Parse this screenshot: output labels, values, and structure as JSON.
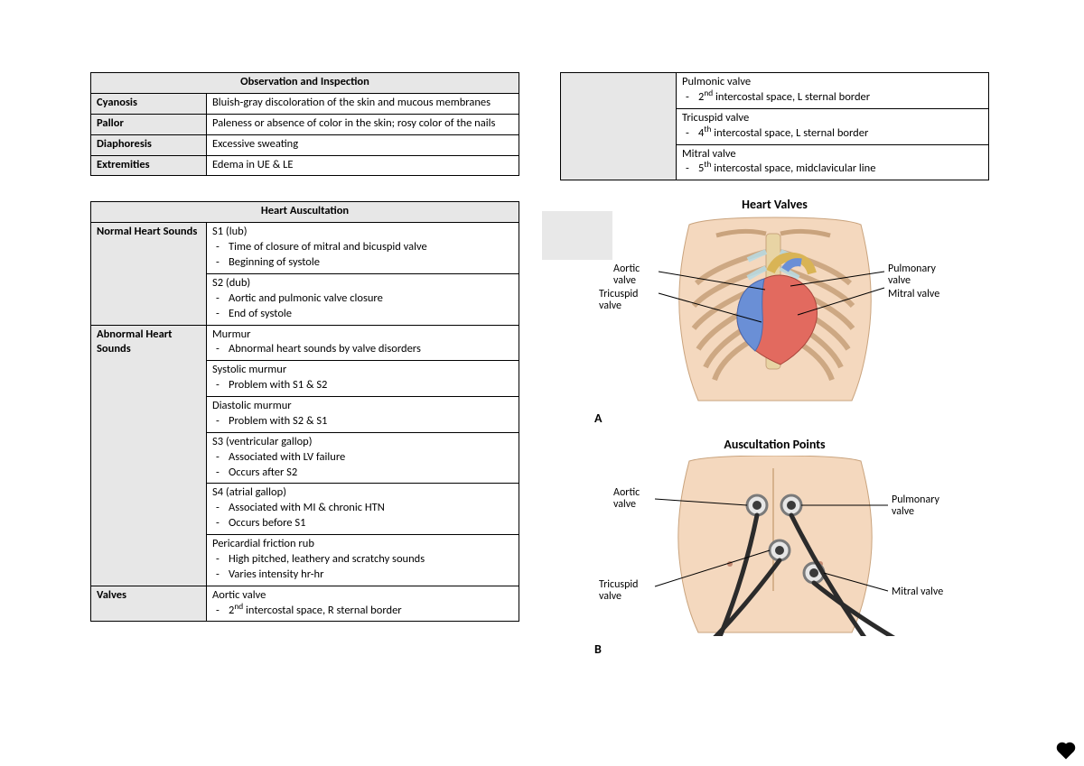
{
  "colors": {
    "header_bg": "#e7e7e7",
    "border": "#000000",
    "text": "#000000",
    "skin": "#f4d8be",
    "bone": "#e8d4a4",
    "cartilage": "#b9dce5",
    "heart_left": "#e26a5f",
    "heart_right": "#6a8fd6",
    "aorta": "#d9b455",
    "steth": "#2b2b2b",
    "steth_ring": "#7a7a7a"
  },
  "table1": {
    "title": "Observation and Inspection",
    "rows": [
      {
        "label": "Cyanosis",
        "text": "Bluish-gray discoloration of the skin and mucous membranes"
      },
      {
        "label": "Pallor",
        "text": "Paleness or absence of color in the skin; rosy color of the nails"
      },
      {
        "label": "Diaphoresis",
        "text": "Excessive sweating"
      },
      {
        "label": "Extremities",
        "text": "Edema in UE & LE"
      }
    ]
  },
  "table2": {
    "title": "Heart Auscultation",
    "sections": [
      {
        "label": "Normal Heart Sounds",
        "cells": [
          {
            "title": "S1 (lub)",
            "bullets": [
              "Time of closure of mitral and bicuspid valve",
              "Beginning of systole"
            ]
          },
          {
            "title": "S2 (dub)",
            "bullets": [
              "Aortic and pulmonic valve closure",
              "End of systole"
            ]
          }
        ]
      },
      {
        "label": "Abnormal Heart Sounds",
        "cells": [
          {
            "title": "Murmur",
            "bullets": [
              "Abnormal heart sounds by valve disorders"
            ]
          },
          {
            "title": "Systolic murmur",
            "bullets": [
              "Problem with S1 & S2"
            ]
          },
          {
            "title": "Diastolic murmur",
            "bullets": [
              "Problem with S2 & S1"
            ]
          },
          {
            "title": "S3 (ventricular gallop)",
            "bullets": [
              "Associated with LV failure",
              "Occurs after S2"
            ]
          },
          {
            "title": "S4 (atrial gallop)",
            "bullets": [
              "Associated with MI & chronic HTN",
              "Occurs before S1"
            ]
          },
          {
            "title": "Pericardial friction rub",
            "bullets": [
              "High pitched, leathery and scratchy sounds",
              "Varies intensity hr-hr"
            ]
          }
        ]
      },
      {
        "label": "Valves",
        "cells": [
          {
            "title": "Aortic valve",
            "bullets_html": [
              "2<sup>nd</sup> intercostal space, R sternal border"
            ]
          }
        ]
      }
    ]
  },
  "table3": {
    "cells": [
      {
        "title": "Pulmonic valve",
        "bullets_html": [
          "2<sup>nd</sup> intercostal space, L sternal border"
        ]
      },
      {
        "title": "Tricuspid valve",
        "bullets_html": [
          "4<sup>th</sup> intercostal space, L sternal border"
        ]
      },
      {
        "title": "Mitral valve",
        "bullets_html": [
          "5<sup>th</sup> intercostal space, midclavicular line"
        ]
      }
    ]
  },
  "diagram_a": {
    "title": "Heart Valves",
    "panel": "A",
    "labels_left": [
      "Aortic valve",
      "Tricuspid valve"
    ],
    "labels_right": [
      "Pulmonary valve",
      "Mitral valve"
    ]
  },
  "diagram_b": {
    "title": "Auscultation Points",
    "panel": "B",
    "labels_left": [
      "Aortic valve",
      "Tricuspid valve"
    ],
    "labels_right": [
      "Pulmonary valve",
      "Mitral valve"
    ]
  }
}
